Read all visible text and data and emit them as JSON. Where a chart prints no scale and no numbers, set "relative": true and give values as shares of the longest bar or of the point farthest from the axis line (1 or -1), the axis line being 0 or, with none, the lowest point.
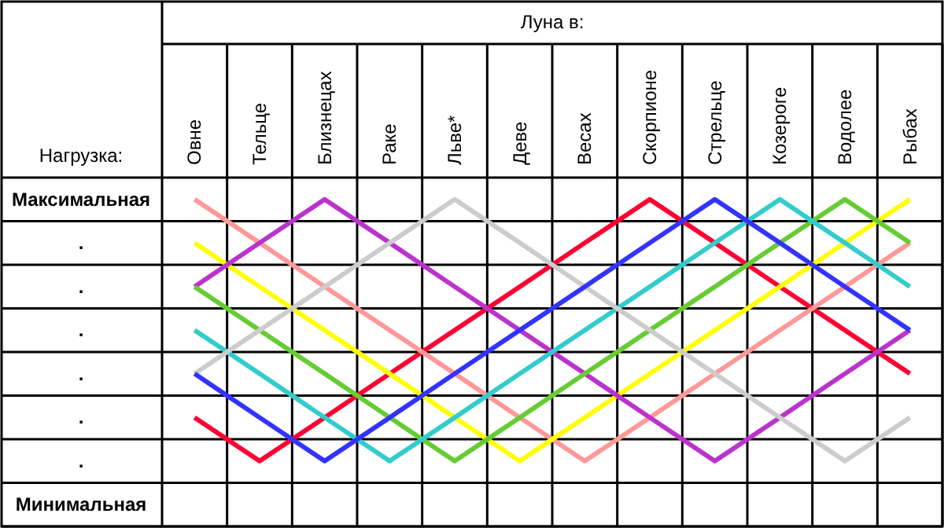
{
  "chart_data": {
    "type": "line",
    "xlabel": "Луна в:",
    "ylabel": "Нагрузка:",
    "relative": true,
    "categories": [
      "Овне",
      "Тельце",
      "Близнецах",
      "Раке",
      "Льве*",
      "Деве",
      "Весах",
      "Скорпионе",
      "Стрельце",
      "Козероге",
      "Водолее",
      "Рыбах"
    ],
    "annotations": [
      "Максимальная",
      ".",
      ".",
      ".",
      ".",
      ".",
      ".",
      "Минимальная"
    ],
    "grid": true,
    "marker": "none",
    "line_style": "solid",
    "series": [
      {
        "color": "#ff0033",
        "values": [
          0.333,
          0.2,
          0.333,
          0.467,
          0.6,
          0.733,
          0.867,
          1,
          0.867,
          0.733,
          0.6,
          0.467
        ]
      },
      {
        "color": "#ff9999",
        "values": [
          1,
          0.867,
          0.733,
          0.6,
          0.467,
          0.333,
          0.2,
          0.333,
          0.467,
          0.6,
          0.733,
          0.867
        ]
      },
      {
        "color": "#ffff00",
        "values": [
          0.867,
          0.733,
          0.6,
          0.467,
          0.333,
          0.2,
          0.333,
          0.467,
          0.6,
          0.733,
          0.867,
          1
        ]
      },
      {
        "color": "#bb33cc",
        "values": [
          0.733,
          0.867,
          1,
          0.867,
          0.733,
          0.6,
          0.467,
          0.333,
          0.2,
          0.333,
          0.467,
          0.6
        ]
      },
      {
        "color": "#66cc33",
        "values": [
          0.733,
          0.6,
          0.467,
          0.333,
          0.2,
          0.333,
          0.467,
          0.6,
          0.733,
          0.867,
          1,
          0.867
        ]
      },
      {
        "color": "#33cccc",
        "values": [
          0.6,
          0.467,
          0.333,
          0.2,
          0.333,
          0.467,
          0.6,
          0.733,
          0.867,
          1,
          0.867,
          0.733
        ]
      },
      {
        "color": "#cccccc",
        "values": [
          0.467,
          0.6,
          0.733,
          0.867,
          1,
          0.867,
          0.733,
          0.6,
          0.467,
          0.333,
          0.2,
          0.333
        ]
      },
      {
        "color": "#3333ff",
        "values": [
          0.467,
          0.333,
          0.2,
          0.333,
          0.467,
          0.6,
          0.733,
          0.867,
          1,
          0.867,
          0.733,
          0.6
        ]
      }
    ]
  }
}
